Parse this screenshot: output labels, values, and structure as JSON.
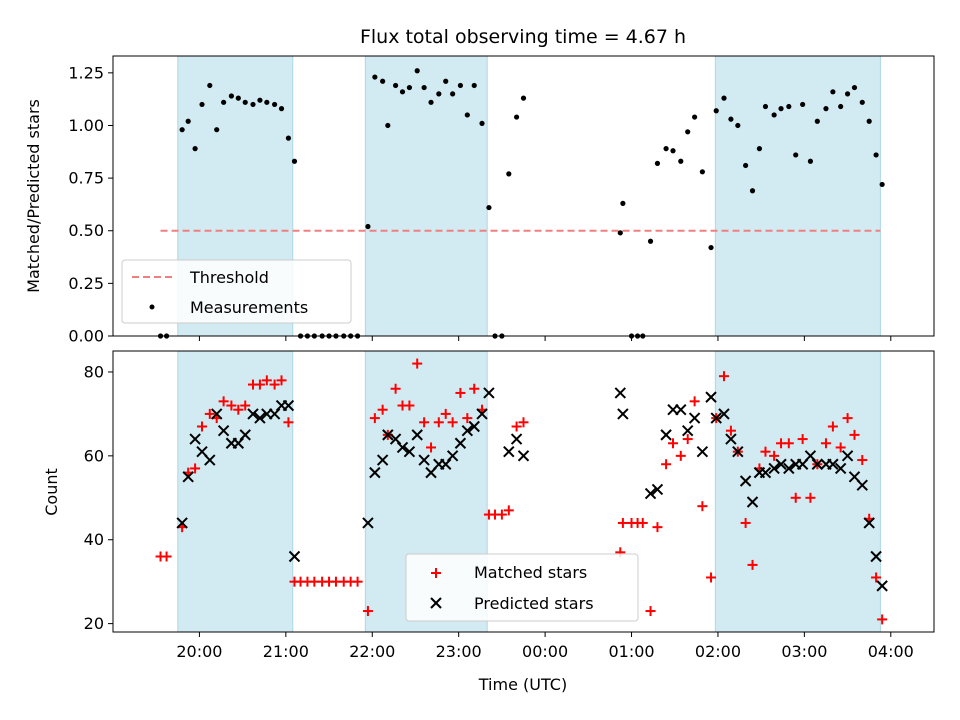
{
  "chart_data": [
    {
      "type": "scatter",
      "title": "Flux total observing time = 4.67 h",
      "ylabel": "Matched/Predicted stars",
      "ylim": [
        0,
        1.33
      ],
      "yticks": [
        0.0,
        0.25,
        0.5,
        0.75,
        1.0,
        1.25
      ],
      "ytick_labels": [
        "0.00",
        "0.25",
        "0.50",
        "0.75",
        "1.00",
        "1.25"
      ],
      "xlim_hours": [
        19.0,
        28.5
      ],
      "shaded_intervals": [
        [
          19.75,
          21.08
        ],
        [
          21.92,
          23.33
        ],
        [
          25.97,
          27.88
        ]
      ],
      "shade_color": "#add8e6",
      "threshold": {
        "name": "Threshold",
        "y": 0.5,
        "x_range": [
          19.55,
          27.88
        ],
        "color": "#f08080"
      },
      "measurements": {
        "name": "Measurements",
        "color": "#000000",
        "points": [
          [
            19.55,
            0.0
          ],
          [
            19.62,
            0.0
          ],
          [
            19.8,
            0.98
          ],
          [
            19.87,
            1.02
          ],
          [
            19.95,
            0.89
          ],
          [
            20.03,
            1.1
          ],
          [
            20.12,
            1.19
          ],
          [
            20.2,
            0.98
          ],
          [
            20.28,
            1.11
          ],
          [
            20.37,
            1.14
          ],
          [
            20.45,
            1.13
          ],
          [
            20.53,
            1.11
          ],
          [
            20.62,
            1.1
          ],
          [
            20.7,
            1.12
          ],
          [
            20.78,
            1.11
          ],
          [
            20.87,
            1.1
          ],
          [
            20.95,
            1.08
          ],
          [
            21.03,
            0.94
          ],
          [
            21.1,
            0.83
          ],
          [
            21.17,
            0.0
          ],
          [
            21.25,
            0.0
          ],
          [
            21.33,
            0.0
          ],
          [
            21.42,
            0.0
          ],
          [
            21.5,
            0.0
          ],
          [
            21.58,
            0.0
          ],
          [
            21.67,
            0.0
          ],
          [
            21.75,
            0.0
          ],
          [
            21.83,
            0.0
          ],
          [
            21.95,
            0.52
          ],
          [
            22.03,
            1.23
          ],
          [
            22.12,
            1.21
          ],
          [
            22.18,
            1.0
          ],
          [
            22.27,
            1.19
          ],
          [
            22.35,
            1.16
          ],
          [
            22.43,
            1.18
          ],
          [
            22.52,
            1.26
          ],
          [
            22.6,
            1.18
          ],
          [
            22.68,
            1.11
          ],
          [
            22.77,
            1.15
          ],
          [
            22.85,
            1.21
          ],
          [
            22.93,
            1.15
          ],
          [
            23.02,
            1.19
          ],
          [
            23.1,
            1.05
          ],
          [
            23.18,
            1.19
          ],
          [
            23.27,
            1.01
          ],
          [
            23.35,
            0.61
          ],
          [
            23.42,
            0.0
          ],
          [
            23.5,
            0.0
          ],
          [
            23.58,
            0.77
          ],
          [
            23.67,
            1.04
          ],
          [
            23.75,
            1.13
          ],
          [
            24.87,
            0.49
          ],
          [
            24.9,
            0.63
          ],
          [
            25.0,
            0.0
          ],
          [
            25.07,
            0.0
          ],
          [
            25.13,
            0.0
          ],
          [
            25.22,
            0.45
          ],
          [
            25.3,
            0.82
          ],
          [
            25.4,
            0.89
          ],
          [
            25.48,
            0.88
          ],
          [
            25.57,
            0.83
          ],
          [
            25.65,
            0.97
          ],
          [
            25.73,
            1.04
          ],
          [
            25.82,
            0.78
          ],
          [
            25.92,
            0.42
          ],
          [
            25.98,
            1.07
          ],
          [
            26.07,
            1.13
          ],
          [
            26.15,
            1.03
          ],
          [
            26.23,
            1.0
          ],
          [
            26.32,
            0.81
          ],
          [
            26.4,
            0.69
          ],
          [
            26.48,
            0.89
          ],
          [
            26.55,
            1.09
          ],
          [
            26.65,
            1.05
          ],
          [
            26.73,
            1.08
          ],
          [
            26.82,
            1.09
          ],
          [
            26.9,
            0.86
          ],
          [
            26.98,
            1.1
          ],
          [
            27.07,
            0.83
          ],
          [
            27.15,
            1.02
          ],
          [
            27.25,
            1.08
          ],
          [
            27.33,
            1.16
          ],
          [
            27.42,
            1.09
          ],
          [
            27.5,
            1.15
          ],
          [
            27.58,
            1.18
          ],
          [
            27.67,
            1.11
          ],
          [
            27.75,
            1.02
          ],
          [
            27.83,
            0.86
          ],
          [
            27.9,
            0.72
          ]
        ]
      },
      "legend": {
        "location": "lower left",
        "entries": [
          "Threshold",
          "Measurements"
        ]
      }
    },
    {
      "type": "scatter",
      "xlabel": "Time (UTC)",
      "ylabel": "Count",
      "ylim": [
        18,
        85
      ],
      "yticks": [
        20,
        40,
        60,
        80
      ],
      "ytick_labels": [
        "20",
        "40",
        "60",
        "80"
      ],
      "xlim_hours": [
        19.0,
        28.5
      ],
      "xticks_hours": [
        20,
        21,
        22,
        23,
        24,
        25,
        26,
        27,
        28
      ],
      "xtick_labels": [
        "20:00",
        "21:00",
        "22:00",
        "23:00",
        "00:00",
        "01:00",
        "02:00",
        "03:00",
        "04:00"
      ],
      "shaded_intervals": [
        [
          19.75,
          21.08
        ],
        [
          21.92,
          23.33
        ],
        [
          25.97,
          27.88
        ]
      ],
      "shade_color": "#add8e6",
      "matched": {
        "name": "Matched stars",
        "color": "#ff0000",
        "marker": "plus",
        "points": [
          [
            19.55,
            36
          ],
          [
            19.62,
            36
          ],
          [
            19.8,
            43
          ],
          [
            19.87,
            56
          ],
          [
            19.95,
            57
          ],
          [
            20.03,
            67
          ],
          [
            20.12,
            70
          ],
          [
            20.2,
            69
          ],
          [
            20.28,
            73
          ],
          [
            20.37,
            72
          ],
          [
            20.45,
            71
          ],
          [
            20.53,
            72
          ],
          [
            20.62,
            77
          ],
          [
            20.7,
            77
          ],
          [
            20.78,
            78
          ],
          [
            20.87,
            77
          ],
          [
            20.95,
            78
          ],
          [
            21.03,
            68
          ],
          [
            21.1,
            30
          ],
          [
            21.17,
            30
          ],
          [
            21.25,
            30
          ],
          [
            21.33,
            30
          ],
          [
            21.42,
            30
          ],
          [
            21.5,
            30
          ],
          [
            21.58,
            30
          ],
          [
            21.67,
            30
          ],
          [
            21.75,
            30
          ],
          [
            21.83,
            30
          ],
          [
            21.95,
            23
          ],
          [
            22.03,
            69
          ],
          [
            22.12,
            71
          ],
          [
            22.18,
            65
          ],
          [
            22.27,
            76
          ],
          [
            22.35,
            72
          ],
          [
            22.43,
            72
          ],
          [
            22.52,
            82
          ],
          [
            22.6,
            68
          ],
          [
            22.68,
            62
          ],
          [
            22.77,
            68
          ],
          [
            22.85,
            70
          ],
          [
            22.93,
            68
          ],
          [
            23.02,
            75
          ],
          [
            23.1,
            69
          ],
          [
            23.18,
            76
          ],
          [
            23.27,
            71
          ],
          [
            23.35,
            46
          ],
          [
            23.42,
            46
          ],
          [
            23.5,
            46
          ],
          [
            23.58,
            47
          ],
          [
            23.67,
            67
          ],
          [
            23.75,
            68
          ],
          [
            24.87,
            37
          ],
          [
            24.9,
            44
          ],
          [
            25.0,
            44
          ],
          [
            25.07,
            44
          ],
          [
            25.13,
            44
          ],
          [
            25.22,
            23
          ],
          [
            25.3,
            43
          ],
          [
            25.4,
            58
          ],
          [
            25.48,
            63
          ],
          [
            25.57,
            60
          ],
          [
            25.65,
            64
          ],
          [
            25.73,
            73
          ],
          [
            25.82,
            48
          ],
          [
            25.92,
            31
          ],
          [
            25.98,
            69
          ],
          [
            26.07,
            79
          ],
          [
            26.15,
            66
          ],
          [
            26.23,
            61
          ],
          [
            26.32,
            44
          ],
          [
            26.4,
            34
          ],
          [
            26.48,
            57
          ],
          [
            26.55,
            61
          ],
          [
            26.65,
            60
          ],
          [
            26.73,
            63
          ],
          [
            26.82,
            63
          ],
          [
            26.9,
            50
          ],
          [
            26.98,
            64
          ],
          [
            27.07,
            50
          ],
          [
            27.15,
            58
          ],
          [
            27.25,
            63
          ],
          [
            27.33,
            67
          ],
          [
            27.42,
            62
          ],
          [
            27.5,
            69
          ],
          [
            27.58,
            65
          ],
          [
            27.67,
            59
          ],
          [
            27.75,
            45
          ],
          [
            27.83,
            31
          ],
          [
            27.9,
            21
          ]
        ]
      },
      "predicted": {
        "name": "Predicted stars",
        "color": "#000000",
        "marker": "x",
        "points": [
          [
            19.8,
            44
          ],
          [
            19.87,
            55
          ],
          [
            19.95,
            64
          ],
          [
            20.03,
            61
          ],
          [
            20.12,
            59
          ],
          [
            20.2,
            70
          ],
          [
            20.28,
            66
          ],
          [
            20.37,
            63
          ],
          [
            20.45,
            63
          ],
          [
            20.53,
            65
          ],
          [
            20.62,
            70
          ],
          [
            20.7,
            69
          ],
          [
            20.78,
            70
          ],
          [
            20.87,
            70
          ],
          [
            20.95,
            72
          ],
          [
            21.03,
            72
          ],
          [
            21.1,
            36
          ],
          [
            21.95,
            44
          ],
          [
            22.03,
            56
          ],
          [
            22.12,
            59
          ],
          [
            22.18,
            65
          ],
          [
            22.27,
            64
          ],
          [
            22.35,
            62
          ],
          [
            22.43,
            61
          ],
          [
            22.52,
            65
          ],
          [
            22.6,
            59
          ],
          [
            22.68,
            56
          ],
          [
            22.77,
            58
          ],
          [
            22.85,
            58
          ],
          [
            22.93,
            60
          ],
          [
            23.02,
            63
          ],
          [
            23.1,
            66
          ],
          [
            23.18,
            67
          ],
          [
            23.27,
            70
          ],
          [
            23.35,
            75
          ],
          [
            23.58,
            61
          ],
          [
            23.67,
            64
          ],
          [
            23.75,
            60
          ],
          [
            24.87,
            75
          ],
          [
            24.9,
            70
          ],
          [
            25.22,
            51
          ],
          [
            25.3,
            52
          ],
          [
            25.4,
            65
          ],
          [
            25.48,
            71
          ],
          [
            25.57,
            71
          ],
          [
            25.65,
            66
          ],
          [
            25.73,
            69
          ],
          [
            25.82,
            61
          ],
          [
            25.92,
            74
          ],
          [
            25.98,
            69
          ],
          [
            26.07,
            70
          ],
          [
            26.15,
            64
          ],
          [
            26.23,
            61
          ],
          [
            26.32,
            54
          ],
          [
            26.4,
            49
          ],
          [
            26.48,
            56
          ],
          [
            26.55,
            56
          ],
          [
            26.65,
            57
          ],
          [
            26.73,
            58
          ],
          [
            26.82,
            57
          ],
          [
            26.9,
            58
          ],
          [
            26.98,
            58
          ],
          [
            27.07,
            60
          ],
          [
            27.15,
            58
          ],
          [
            27.25,
            58
          ],
          [
            27.33,
            58
          ],
          [
            27.42,
            57
          ],
          [
            27.5,
            60
          ],
          [
            27.58,
            55
          ],
          [
            27.67,
            53
          ],
          [
            27.75,
            44
          ],
          [
            27.83,
            36
          ],
          [
            27.9,
            29
          ]
        ]
      },
      "legend": {
        "location": "lower center",
        "entries": [
          "Matched stars",
          "Predicted stars"
        ]
      }
    }
  ]
}
